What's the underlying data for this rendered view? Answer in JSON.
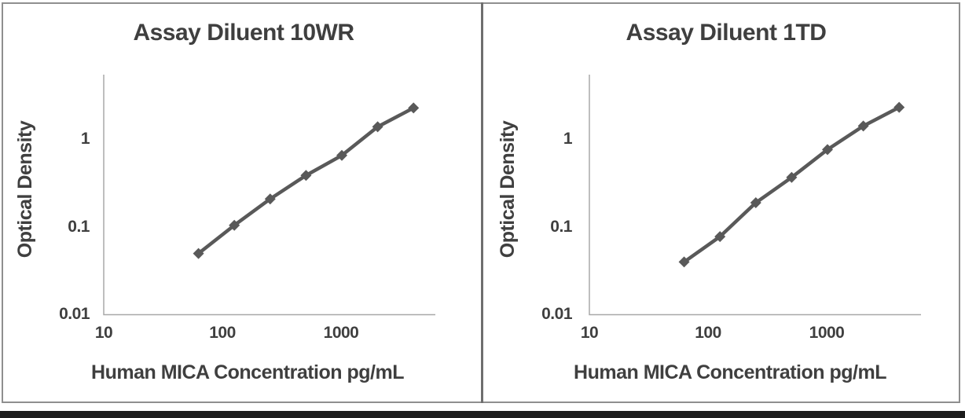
{
  "colors": {
    "text": "#3f3f3f",
    "axis_line": "#a8a8a8",
    "series": "#595959",
    "frame_border": "#8f8f8f",
    "panel_divider": "#6e6e6e",
    "bottom_bar": "#1b1b1b",
    "background": "#ffffff"
  },
  "chart_data": [
    {
      "type": "line",
      "title": "Assay Diluent 10WR",
      "xlabel": "Human MICA Concentration pg/mL",
      "ylabel": "Optical Density",
      "xscale": "log",
      "yscale": "log",
      "x": [
        62.5,
        125,
        250,
        500,
        1000,
        2000,
        4000
      ],
      "y": [
        0.05,
        0.105,
        0.21,
        0.39,
        0.66,
        1.4,
        2.3
      ],
      "x_tick_labels": [
        "10",
        "100",
        "1000"
      ],
      "y_tick_labels": [
        "1",
        "0.1",
        "0.01"
      ],
      "xlim": [
        10,
        6000
      ],
      "ylim": [
        0.01,
        5.5
      ],
      "grid": false,
      "legend": false,
      "marker": "diamond",
      "series_color": "#595959"
    },
    {
      "type": "line",
      "title": "Assay Diluent 1TD",
      "xlabel": "Human MICA Concentration pg/mL",
      "ylabel": "Optical Density",
      "xscale": "log",
      "yscale": "log",
      "x": [
        62.5,
        125,
        250,
        500,
        1000,
        2000,
        4000
      ],
      "y": [
        0.04,
        0.078,
        0.19,
        0.37,
        0.77,
        1.43,
        2.34
      ],
      "x_tick_labels": [
        "10",
        "100",
        "1000"
      ],
      "y_tick_labels": [
        "1",
        "0.1",
        "0.01"
      ],
      "xlim": [
        10,
        6000
      ],
      "ylim": [
        0.01,
        5.5
      ],
      "grid": false,
      "legend": false,
      "marker": "diamond",
      "series_color": "#595959"
    }
  ]
}
